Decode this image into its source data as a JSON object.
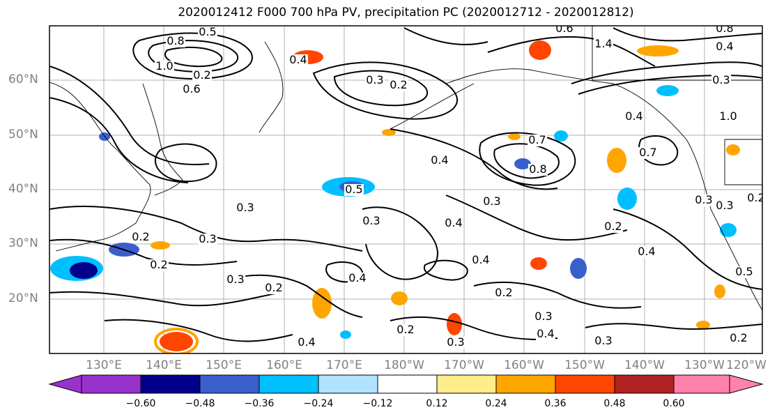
{
  "title": "2020012412 F000 700 hPa PV, precipitation PC (2020012712 - 2020012812)",
  "lat_labels": [
    "60°N",
    "50°N",
    "40°N",
    "30°N",
    "20°N"
  ],
  "lon_labels": [
    "130°E",
    "140°E",
    "150°E",
    "160°E",
    "170°E",
    "180°W",
    "170°W",
    "160°W",
    "150°W",
    "140°W",
    "130°W",
    "120°W"
  ],
  "colorbar": {
    "ticks": [
      "−0.60",
      "−0.48",
      "−0.36",
      "−0.24",
      "−0.12",
      "0.12",
      "0.24",
      "0.36",
      "0.48",
      "0.60"
    ],
    "colors": [
      "#9932cc",
      "#00008b",
      "#3a5fcd",
      "#00bfff",
      "#b0e2ff",
      "#ffffff",
      "#ffec8b",
      "#ffa500",
      "#ff4500",
      "#b22222",
      "#ff82ab"
    ]
  },
  "contour_labels": [
    "0.5",
    "0.8",
    "1.0",
    "0.6",
    "0.4",
    "0.3",
    "0.2",
    "0.5",
    "0.4",
    "0.3",
    "0.3",
    "0.2",
    "0.2",
    "0.3",
    "0.2",
    "0.4",
    "0.4",
    "0.3",
    "0.4",
    "0.2",
    "0.2",
    "0.3",
    "0.4",
    "0.3",
    "0.2",
    "0.3",
    "0.2",
    "0.3",
    "0.7",
    "0.4",
    "0.8",
    "0.7",
    "0.3",
    "0.2",
    "0.4",
    "0.5",
    "0.2",
    "1.4",
    "0.8",
    "0.4",
    "0.6",
    "0.3",
    "1.0",
    "0.3",
    "0.4"
  ]
}
